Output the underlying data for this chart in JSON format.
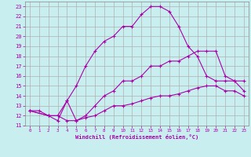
{
  "bg_color": "#c8eef0",
  "grid_color": "#b0b0b0",
  "line_color": "#aa00aa",
  "marker": "+",
  "xlim": [
    -0.5,
    23.5
  ],
  "ylim": [
    11,
    23.5
  ],
  "xticks": [
    0,
    1,
    2,
    3,
    4,
    5,
    6,
    7,
    8,
    9,
    10,
    11,
    12,
    13,
    14,
    15,
    16,
    17,
    18,
    19,
    20,
    21,
    22,
    23
  ],
  "yticks": [
    11,
    12,
    13,
    14,
    15,
    16,
    17,
    18,
    19,
    20,
    21,
    22,
    23
  ],
  "xlabel": "Windchill (Refroidissement éolien,°C)",
  "line1_x": [
    0,
    1,
    2,
    3,
    4,
    5,
    6,
    7,
    8,
    9,
    10,
    11,
    12,
    13,
    14,
    15,
    16,
    17,
    18,
    19,
    20,
    21,
    22,
    23
  ],
  "line1_y": [
    12.5,
    12.5,
    12.0,
    11.5,
    13.5,
    15.0,
    17.0,
    18.5,
    19.5,
    20.0,
    21.0,
    21.0,
    22.2,
    23.0,
    23.0,
    22.5,
    21.0,
    19.0,
    18.0,
    16.0,
    15.5,
    15.5,
    15.5,
    15.5
  ],
  "line2_x": [
    0,
    2,
    3,
    4,
    5,
    6,
    7,
    8,
    9,
    10,
    11,
    12,
    13,
    14,
    15,
    16,
    17,
    18,
    19,
    20,
    21,
    22,
    23
  ],
  "line2_y": [
    12.5,
    12.0,
    12.0,
    13.5,
    11.5,
    12.0,
    13.0,
    14.0,
    14.5,
    15.5,
    15.5,
    16.0,
    17.0,
    17.0,
    17.5,
    17.5,
    18.0,
    18.5,
    18.5,
    18.5,
    16.0,
    15.5,
    14.5
  ],
  "line3_x": [
    0,
    2,
    3,
    4,
    5,
    6,
    7,
    8,
    9,
    10,
    11,
    12,
    13,
    14,
    15,
    16,
    17,
    18,
    19,
    20,
    21,
    22,
    23
  ],
  "line3_y": [
    12.5,
    12.0,
    12.0,
    11.5,
    11.5,
    11.8,
    12.0,
    12.5,
    13.0,
    13.0,
    13.2,
    13.5,
    13.8,
    14.0,
    14.0,
    14.2,
    14.5,
    14.8,
    15.0,
    15.0,
    14.5,
    14.5,
    14.0
  ]
}
